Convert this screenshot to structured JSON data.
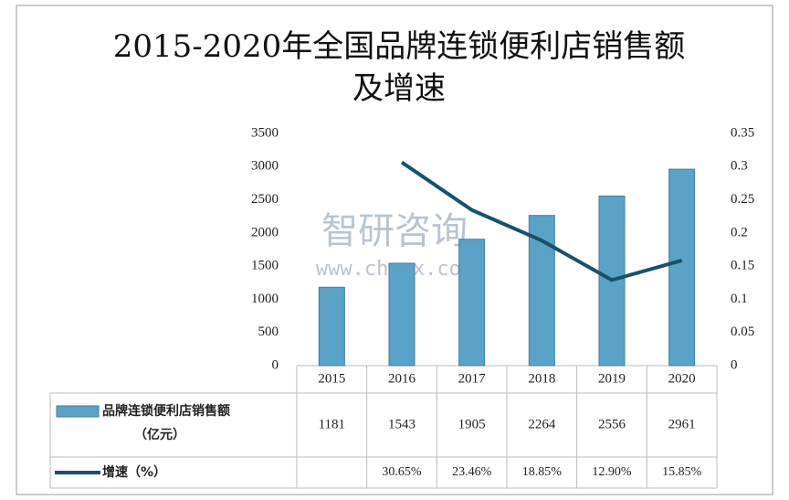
{
  "chart_data": {
    "type": "bar-line",
    "title": "2015-2020年全国品牌连锁便利店销售额及增速",
    "watermark": [
      "智研咨询",
      "www.chyxx.com"
    ],
    "categories": [
      "2015",
      "2016",
      "2017",
      "2018",
      "2019",
      "2020"
    ],
    "series": [
      {
        "name": "品牌连锁便利店销售额（亿元）",
        "type": "bar",
        "color": "#5ba3c6",
        "values": [
          1181,
          1543,
          1905,
          2264,
          2556,
          2961
        ]
      },
      {
        "name": "增速（%）",
        "type": "line",
        "axis": "y2",
        "color": "#16536b",
        "values": [
          null,
          0.3065,
          0.2346,
          0.1885,
          0.129,
          0.1585
        ],
        "value_labels": [
          null,
          "30.65%",
          "23.46%",
          "18.85%",
          "12.90%",
          "15.85%"
        ]
      }
    ],
    "ylim": [
      0,
      3500
    ],
    "yticks": [
      0,
      500,
      1000,
      1500,
      2000,
      2500,
      3000,
      3500
    ],
    "y2lim": [
      0,
      0.35
    ],
    "y2ticks": [
      0,
      0.05,
      0.1,
      0.15,
      0.2,
      0.25,
      0.3,
      0.35
    ],
    "grid": false
  }
}
